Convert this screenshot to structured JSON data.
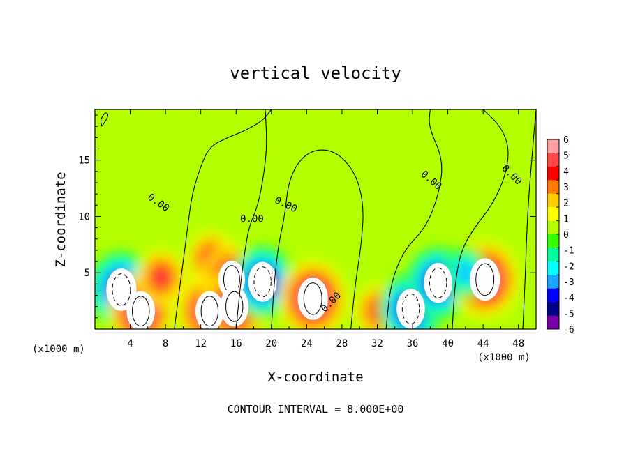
{
  "chart_data": {
    "type": "heatmap",
    "title": "vertical velocity",
    "xlabel": "X-coordinate",
    "ylabel": "Z-coordinate",
    "x_unit_left": "(x1000 m)",
    "x_unit_right": "(x1000 m)",
    "footer": "CONTOUR INTERVAL = 8.000E+00",
    "xlim": [
      0,
      50
    ],
    "ylim": [
      0,
      19.5
    ],
    "x_ticks": [
      4,
      8,
      12,
      16,
      20,
      24,
      28,
      32,
      36,
      40,
      44,
      48
    ],
    "y_ticks": [
      5,
      10,
      15
    ],
    "colorbar": {
      "labels": [
        "6",
        "5",
        "4",
        "3",
        "2",
        "1",
        "0",
        "-1",
        "-2",
        "-3",
        "-4",
        "-5",
        "-6"
      ],
      "colors": [
        "#ff9e9e",
        "#ff4848",
        "#ff0000",
        "#ff7a00",
        "#ffcc00",
        "#ffff00",
        "#b4ff00",
        "#33ff00",
        "#00ff99",
        "#00ffff",
        "#1aa3ff",
        "#0000ff",
        "#00008b",
        "#7a00aa"
      ]
    },
    "contour_labels": [
      {
        "text": "0.00",
        "x": 7.0,
        "z": 11.0,
        "angle": 35
      },
      {
        "text": "0.00",
        "x": 17.8,
        "z": 9.5,
        "angle": 0
      },
      {
        "text": "0.00",
        "x": 21.5,
        "z": 10.8,
        "angle": 25
      },
      {
        "text": "0.00",
        "x": 27.0,
        "z": 2.2,
        "angle": -45
      },
      {
        "text": "0.00",
        "x": 37.9,
        "z": 13.0,
        "angle": 40
      },
      {
        "text": "0.00",
        "x": 47.0,
        "z": 13.5,
        "angle": 45
      }
    ],
    "features": [
      {
        "x": 3.0,
        "z": 3.5,
        "w": -12,
        "note": "strong downdraft with dashed contours"
      },
      {
        "x": 5.2,
        "z": 1.6,
        "w": 9
      },
      {
        "x": 7.5,
        "z": 4.6,
        "w": 5
      },
      {
        "x": 13.0,
        "z": 1.6,
        "w": 9
      },
      {
        "x": 13.2,
        "z": 6.2,
        "w": 5
      },
      {
        "x": 15.5,
        "z": 4.4,
        "w": 8
      },
      {
        "x": 15.8,
        "z": 2.0,
        "w": 9
      },
      {
        "x": 19.0,
        "z": 4.2,
        "w": -9
      },
      {
        "x": 24.7,
        "z": 2.7,
        "w": 10
      },
      {
        "x": 32.3,
        "z": 1.6,
        "w": 5
      },
      {
        "x": 35.8,
        "z": 1.8,
        "w": -9
      },
      {
        "x": 38.9,
        "z": 4.1,
        "w": -9
      },
      {
        "x": 44.2,
        "z": 4.4,
        "w": 14,
        "note": "strong updraft"
      },
      {
        "x": 42.0,
        "z": 5.0,
        "w": -4
      }
    ]
  }
}
